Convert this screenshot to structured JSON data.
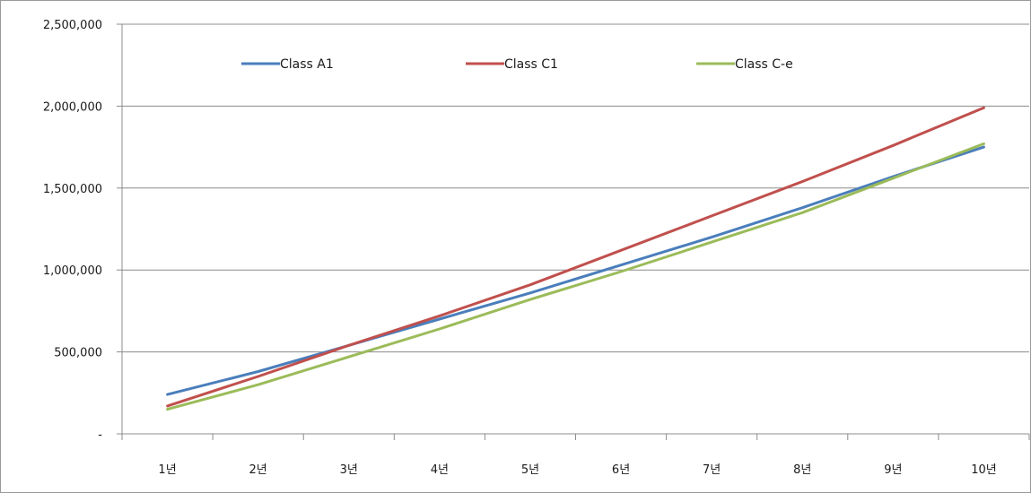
{
  "chart_data": {
    "type": "line",
    "categories": [
      "1년",
      "2년",
      "3년",
      "4년",
      "5년",
      "6년",
      "7년",
      "8년",
      "9년",
      "10년"
    ],
    "series": [
      {
        "name": "Class A1",
        "color": "#4a7ebb",
        "values": [
          240000,
          380000,
          540000,
          700000,
          860000,
          1030000,
          1200000,
          1380000,
          1570000,
          1750000
        ]
      },
      {
        "name": "Class  C1",
        "color": "#c0504d",
        "values": [
          170000,
          350000,
          540000,
          720000,
          910000,
          1120000,
          1330000,
          1540000,
          1760000,
          1990000
        ]
      },
      {
        "name": "Class C-e",
        "color": "#9bbb59",
        "values": [
          150000,
          300000,
          470000,
          640000,
          820000,
          990000,
          1170000,
          1350000,
          1560000,
          1770000
        ]
      }
    ],
    "yticks": [
      "-",
      "500,000",
      "1,000,000",
      "1,500,000",
      "2,000,000",
      "2,500,000"
    ],
    "ylim": [
      0,
      2500000
    ],
    "grid": true,
    "legend": "top",
    "title": "",
    "xlabel": "",
    "ylabel": ""
  }
}
